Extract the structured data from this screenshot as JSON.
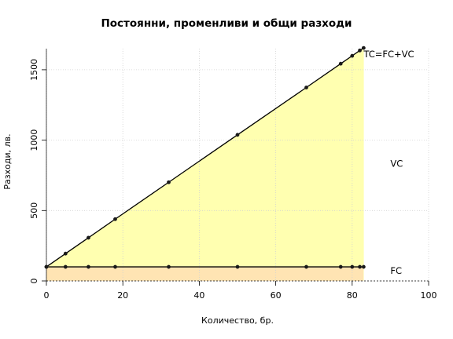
{
  "chart_data": {
    "type": "area",
    "title": "Постоянни, променливи и общи разходи",
    "xlabel": "Количество, бр.",
    "ylabel": "Разходи, лв.",
    "xlim": [
      0,
      100
    ],
    "ylim": [
      0,
      1650
    ],
    "x_ticks": [
      0,
      20,
      40,
      60,
      80,
      100
    ],
    "y_ticks": [
      0,
      500,
      1000,
      1500
    ],
    "grid": true,
    "x": [
      0,
      5,
      11,
      18,
      32,
      50,
      68,
      77,
      80,
      82,
      83
    ],
    "series": [
      {
        "name": "FC",
        "values": [
          100,
          100,
          100,
          100,
          100,
          100,
          100,
          100,
          100,
          100,
          100
        ]
      },
      {
        "name": "TC=FC+VC",
        "values": [
          100,
          194,
          307,
          439,
          701,
          1038,
          1374,
          1543,
          1599,
          1637,
          1655
        ]
      }
    ],
    "annotations": [
      {
        "text": "TC=FC+VC",
        "x": 83,
        "y": 1590
      },
      {
        "text": "VC",
        "x": 90,
        "y": 810
      },
      {
        "text": "FC",
        "x": 90,
        "y": 50
      }
    ],
    "colors": {
      "fc_fill": "#ffe4b3",
      "vc_fill": "#ffffb0",
      "line": "#000000",
      "points": "#1a1a1a",
      "grid": "#d3d3d3"
    }
  }
}
